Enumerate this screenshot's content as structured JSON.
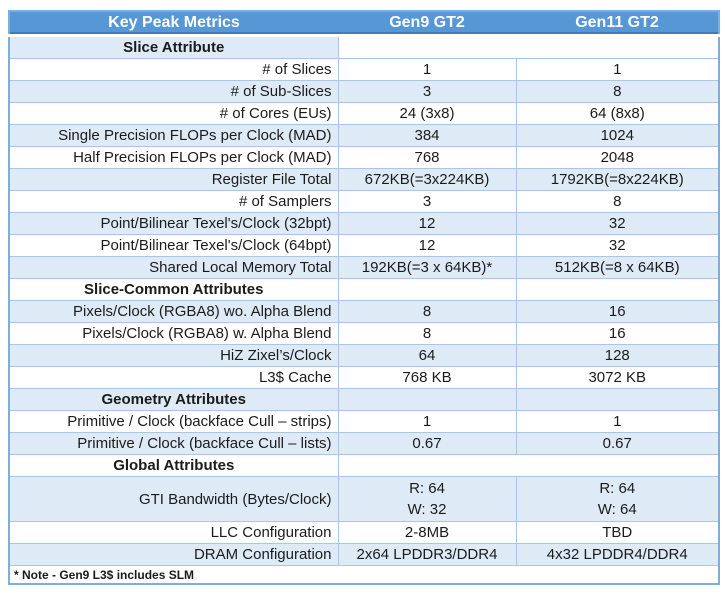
{
  "palette": {
    "header_bg": "#5697D5",
    "header_text": "#FFFFFF",
    "header_edge": "#3E7DB8",
    "band_bg": "#DEEBF7",
    "grid_border": "#A9C6E8",
    "outer_border": "#7FAEDC",
    "text": "#1B1B1B"
  },
  "header": {
    "col1": "Key Peak Metrics",
    "col2": "Gen9 GT2",
    "col3": "Gen11 GT2"
  },
  "rows": [
    {
      "kind": "section",
      "label": "Slice Attribute",
      "band": true,
      "merge": true
    },
    {
      "kind": "data",
      "label": "# of Slices",
      "gen9": "1",
      "gen11": "1",
      "band": false
    },
    {
      "kind": "data",
      "label": "# of Sub-Slices",
      "gen9": "3",
      "gen11": "8",
      "band": true
    },
    {
      "kind": "data",
      "label": "# of Cores (EUs)",
      "gen9": "24 (3x8)",
      "gen11": "64 (8x8)",
      "band": false
    },
    {
      "kind": "data",
      "label": "Single Precision FLOPs per Clock (MAD)",
      "gen9": "384",
      "gen11": "1024",
      "band": true
    },
    {
      "kind": "data",
      "label": "Half Precision FLOPs per Clock (MAD)",
      "gen9": "768",
      "gen11": "2048",
      "band": false
    },
    {
      "kind": "data",
      "label": "Register File Total",
      "gen9": "672KB(=3x224KB)",
      "gen11": "1792KB(=8x224KB)",
      "band": true
    },
    {
      "kind": "data",
      "label": "# of Samplers",
      "gen9": "3",
      "gen11": "8",
      "band": false
    },
    {
      "kind": "data",
      "label": "Point/Bilinear Texel's/Clock (32bpt)",
      "gen9": "12",
      "gen11": "32",
      "band": true
    },
    {
      "kind": "data",
      "label": "Point/Bilinear Texel's/Clock (64bpt)",
      "gen9": "12",
      "gen11": "32",
      "band": false
    },
    {
      "kind": "data",
      "label": "Shared Local Memory Total",
      "gen9": "192KB(=3 x 64KB)*",
      "gen11": "512KB(=8 x 64KB)",
      "band": true
    },
    {
      "kind": "section",
      "label": "Slice-Common Attributes",
      "band": false,
      "merge": false
    },
    {
      "kind": "data",
      "label": "Pixels/Clock (RGBA8) wo. Alpha Blend",
      "gen9": "8",
      "gen11": "16",
      "band": true
    },
    {
      "kind": "data",
      "label": "Pixels/Clock (RGBA8) w. Alpha Blend",
      "gen9": "8",
      "gen11": "16",
      "band": false
    },
    {
      "kind": "data",
      "label": "HiZ Zixel’s/Clock",
      "gen9": "64",
      "gen11": "128",
      "band": true
    },
    {
      "kind": "data",
      "label": "L3$ Cache",
      "gen9": "768 KB",
      "gen11": "3072 KB",
      "band": false
    },
    {
      "kind": "section",
      "label": "Geometry Attributes",
      "band": true,
      "merge": false
    },
    {
      "kind": "data",
      "label": "Primitive / Clock (backface Cull – strips)",
      "gen9": "1",
      "gen11": "1",
      "band": false
    },
    {
      "kind": "data",
      "label": "Primitive / Clock (backface Cull – lists)",
      "gen9": "0.67",
      "gen11": "0.67",
      "band": true
    },
    {
      "kind": "section",
      "label": "Global Attributes",
      "band": false,
      "merge": true
    },
    {
      "kind": "data",
      "label": "GTI Bandwidth (Bytes/Clock)",
      "gen9": "R: 64\nW: 32",
      "gen11": "R: 64\nW: 64",
      "band": true,
      "tall": true
    },
    {
      "kind": "data",
      "label": "LLC Configuration",
      "gen9": "2-8MB",
      "gen11": "TBD",
      "band": false
    },
    {
      "kind": "data",
      "label": "DRAM Configuration",
      "gen9": "2x64 LPDDR3/DDR4",
      "gen11": "4x32 LPDDR4/DDR4",
      "band": true
    }
  ],
  "footer_note": "* Note - Gen9 L3$ includes SLM"
}
